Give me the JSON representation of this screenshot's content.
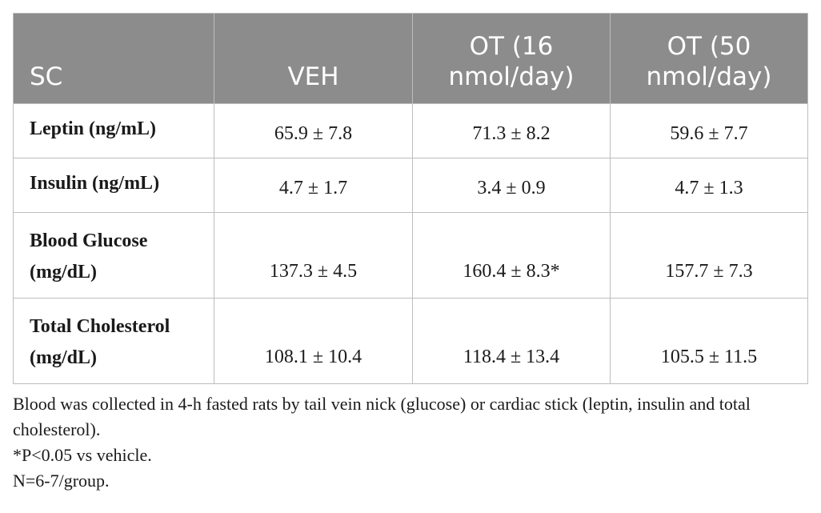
{
  "table": {
    "headers": [
      "SC",
      "VEH",
      "OT (16 nmol/day)",
      "OT (50 nmol/day)"
    ],
    "rows": [
      {
        "label": "Leptin (ng/mL)",
        "values": [
          "65.9 ± 7.8",
          "71.3 ± 8.2",
          "59.6 ± 7.7"
        ]
      },
      {
        "label": "Insulin (ng/mL)",
        "values": [
          "4.7 ± 1.7",
          "3.4 ± 0.9",
          "4.7 ± 1.3"
        ]
      },
      {
        "label": "Blood Glucose (mg/dL)",
        "values": [
          "137.3 ± 4.5",
          "160.4 ± 8.3*",
          "157.7 ± 7.3"
        ]
      },
      {
        "label": "Total Cholesterol (mg/dL)",
        "values": [
          "108.1 ± 10.4",
          "118.4 ± 13.4",
          "105.5 ± 11.5"
        ]
      }
    ]
  },
  "notes": [
    "Blood was collected in 4-h fasted rats by tail vein nick (glucose) or cardiac stick (leptin, insulin and total cholesterol).",
    "*P<0.05 vs vehicle.",
    "N=6-7/group."
  ],
  "colors": {
    "header_bg": "#8c8c8c",
    "header_text": "#ffffff",
    "grid_line": "#bdbdbd"
  }
}
